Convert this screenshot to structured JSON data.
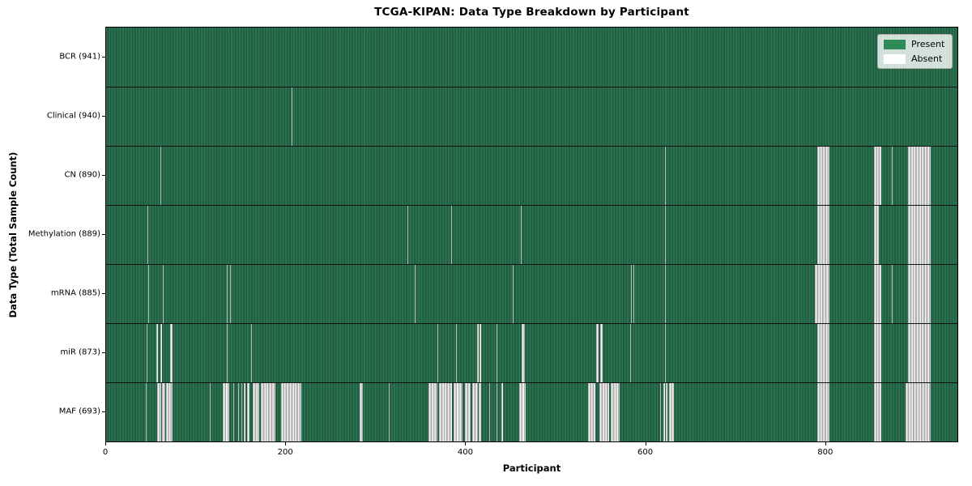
{
  "chart_data": {
    "type": "heatmap",
    "title": "TCGA-KIPAN: Data Type Breakdown by Participant",
    "xlabel": "Participant",
    "ylabel": "Data Type (Total Sample Count)",
    "x_ticks": [
      0,
      200,
      400,
      600,
      800
    ],
    "x_axis_max": 946,
    "n_participants": 941,
    "grid": "row-separators-only",
    "legend": {
      "position": "upper right",
      "items": [
        {
          "label": "Present",
          "color": "#2e8b57"
        },
        {
          "label": "Absent",
          "color": "#ffffff"
        }
      ]
    },
    "colors": {
      "present": "#2e8b57",
      "present_stripe_dark": "#1f5b40",
      "absent": "#ffffff",
      "absent_stripe": "#a3a3a3",
      "separator": "#101010",
      "background": "#ffffff"
    },
    "rows": [
      {
        "label": "BCR (941)",
        "data_type": "BCR",
        "total_samples": 941,
        "absent_ranges": []
      },
      {
        "label": "Clinical (940)",
        "data_type": "Clinical",
        "total_samples": 940,
        "absent_ranges": [
          [
            206,
            207
          ]
        ]
      },
      {
        "label": "CN (890)",
        "data_type": "CN",
        "total_samples": 890,
        "absent_ranges": [
          [
            60,
            61
          ],
          [
            621,
            622
          ],
          [
            790,
            804
          ],
          [
            853,
            861
          ],
          [
            873,
            874
          ],
          [
            891,
            916
          ]
        ]
      },
      {
        "label": "Methylation (889)",
        "data_type": "Methylation",
        "total_samples": 889,
        "absent_ranges": [
          [
            46,
            47
          ],
          [
            335,
            336
          ],
          [
            383,
            384
          ],
          [
            461,
            462
          ],
          [
            621,
            622
          ],
          [
            790,
            804
          ],
          [
            853,
            859
          ],
          [
            891,
            916
          ]
        ]
      },
      {
        "label": "mRNA (885)",
        "data_type": "mRNA",
        "total_samples": 885,
        "absent_ranges": [
          [
            47,
            48
          ],
          [
            63,
            64
          ],
          [
            134,
            135
          ],
          [
            138,
            139
          ],
          [
            343,
            344
          ],
          [
            452,
            453
          ],
          [
            583,
            584
          ],
          [
            586,
            587
          ],
          [
            621,
            622
          ],
          [
            788,
            804
          ],
          [
            853,
            861
          ],
          [
            873,
            874
          ],
          [
            891,
            916
          ]
        ]
      },
      {
        "label": "miR (873)",
        "data_type": "miR",
        "total_samples": 873,
        "absent_ranges": [
          [
            45,
            46
          ],
          [
            56,
            58
          ],
          [
            60,
            62
          ],
          [
            71,
            74
          ],
          [
            134,
            135
          ],
          [
            161,
            162
          ],
          [
            368,
            369
          ],
          [
            389,
            390
          ],
          [
            412,
            414
          ],
          [
            415,
            417
          ],
          [
            434,
            435
          ],
          [
            462,
            465
          ],
          [
            545,
            547
          ],
          [
            549,
            552
          ],
          [
            582,
            583
          ],
          [
            621,
            622
          ],
          [
            790,
            804
          ],
          [
            853,
            861
          ],
          [
            891,
            916
          ]
        ]
      },
      {
        "label": "MAF (693)",
        "data_type": "MAF",
        "total_samples": 693,
        "absent_ranges": [
          [
            44,
            45
          ],
          [
            57,
            61
          ],
          [
            62,
            66
          ],
          [
            67,
            74
          ],
          [
            115,
            116
          ],
          [
            130,
            137
          ],
          [
            141,
            142
          ],
          [
            147,
            148
          ],
          [
            150,
            151
          ],
          [
            153,
            155
          ],
          [
            157,
            159
          ],
          [
            163,
            170
          ],
          [
            172,
            188
          ],
          [
            194,
            217
          ],
          [
            282,
            285
          ],
          [
            314,
            315
          ],
          [
            358,
            368
          ],
          [
            370,
            384
          ],
          [
            386,
            396
          ],
          [
            399,
            405
          ],
          [
            407,
            413
          ],
          [
            414,
            417
          ],
          [
            426,
            427
          ],
          [
            434,
            435
          ],
          [
            439,
            441
          ],
          [
            459,
            466
          ],
          [
            536,
            544
          ],
          [
            548,
            559
          ],
          [
            561,
            571
          ],
          [
            616,
            617
          ],
          [
            619,
            621
          ],
          [
            622,
            624
          ],
          [
            626,
            631
          ],
          [
            790,
            804
          ],
          [
            853,
            861
          ],
          [
            888,
            916
          ]
        ]
      }
    ]
  }
}
